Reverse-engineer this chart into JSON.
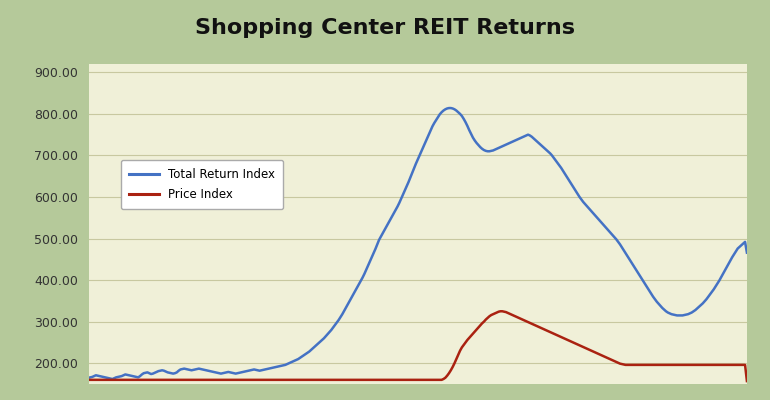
{
  "title": "Shopping Center REIT Returns",
  "title_fontsize": 16,
  "title_fontweight": "bold",
  "background_outer": "#b5c99a",
  "background_inner": "#f0f0d8",
  "ylim": [
    150,
    920
  ],
  "yticks": [
    200,
    300,
    400,
    500,
    600,
    700,
    800,
    900
  ],
  "grid_color": "#c8c8a0",
  "total_return_color": "#4472c4",
  "price_index_color": "#aa2211",
  "line_width": 1.8,
  "legend_label_total": "Total Return Index",
  "legend_label_price": "Price Index",
  "total_return_index": [
    165,
    166,
    167,
    169,
    171,
    170,
    169,
    168,
    167,
    166,
    165,
    164,
    163,
    162,
    164,
    166,
    167,
    168,
    169,
    171,
    173,
    172,
    171,
    170,
    169,
    168,
    167,
    166,
    169,
    173,
    176,
    177,
    178,
    176,
    174,
    175,
    177,
    179,
    181,
    182,
    183,
    182,
    180,
    178,
    177,
    176,
    175,
    176,
    178,
    182,
    185,
    186,
    187,
    186,
    185,
    184,
    183,
    184,
    185,
    186,
    187,
    186,
    185,
    184,
    183,
    182,
    181,
    180,
    179,
    178,
    177,
    176,
    175,
    176,
    177,
    178,
    179,
    178,
    177,
    176,
    175,
    176,
    177,
    178,
    179,
    180,
    181,
    182,
    183,
    184,
    185,
    184,
    183,
    182,
    183,
    184,
    185,
    186,
    187,
    188,
    189,
    190,
    191,
    192,
    193,
    194,
    195,
    196,
    198,
    200,
    202,
    204,
    206,
    208,
    210,
    213,
    216,
    219,
    222,
    225,
    228,
    232,
    236,
    240,
    244,
    248,
    252,
    256,
    260,
    265,
    270,
    275,
    280,
    286,
    292,
    298,
    304,
    311,
    318,
    326,
    334,
    342,
    350,
    358,
    366,
    374,
    382,
    390,
    398,
    406,
    415,
    425,
    435,
    445,
    455,
    465,
    475,
    486,
    497,
    505,
    513,
    521,
    529,
    537,
    545,
    553,
    561,
    569,
    577,
    586,
    596,
    606,
    616,
    626,
    636,
    647,
    658,
    669,
    680,
    690,
    700,
    710,
    720,
    730,
    740,
    750,
    760,
    770,
    778,
    785,
    792,
    799,
    804,
    808,
    811,
    813,
    814,
    814,
    813,
    811,
    808,
    804,
    800,
    795,
    788,
    780,
    771,
    761,
    752,
    743,
    736,
    730,
    725,
    720,
    716,
    713,
    711,
    710,
    710,
    711,
    712,
    714,
    716,
    718,
    720,
    722,
    724,
    726,
    728,
    730,
    732,
    734,
    736,
    738,
    740,
    742,
    744,
    746,
    748,
    750,
    748,
    745,
    741,
    737,
    733,
    729,
    725,
    721,
    717,
    713,
    709,
    705,
    700,
    694,
    688,
    682,
    676,
    670,
    663,
    656,
    649,
    642,
    635,
    628,
    621,
    614,
    607,
    600,
    594,
    588,
    583,
    578,
    573,
    568,
    563,
    558,
    553,
    548,
    543,
    538,
    533,
    528,
    523,
    518,
    513,
    508,
    503,
    498,
    492,
    486,
    479,
    472,
    465,
    458,
    451,
    444,
    437,
    430,
    423,
    416,
    409,
    402,
    395,
    388,
    381,
    374,
    367,
    360,
    354,
    348,
    343,
    338,
    333,
    329,
    325,
    322,
    320,
    318,
    317,
    316,
    315,
    315,
    315,
    315,
    316,
    317,
    318,
    320,
    322,
    325,
    328,
    332,
    336,
    340,
    344,
    349,
    354,
    360,
    366,
    372,
    378,
    385,
    392,
    399,
    407,
    415,
    423,
    431,
    439,
    447,
    455,
    462,
    469,
    476,
    480,
    484,
    488,
    492,
    466
  ],
  "price_index": [
    160,
    160,
    160,
    160,
    160,
    160,
    160,
    160,
    160,
    160,
    160,
    160,
    160,
    160,
    160,
    160,
    160,
    160,
    160,
    160,
    160,
    160,
    160,
    160,
    160,
    160,
    160,
    160,
    160,
    160,
    160,
    160,
    160,
    160,
    160,
    160,
    160,
    160,
    160,
    160,
    160,
    160,
    160,
    160,
    160,
    160,
    160,
    160,
    160,
    160,
    160,
    160,
    160,
    160,
    160,
    160,
    160,
    160,
    160,
    160,
    160,
    160,
    160,
    160,
    160,
    160,
    160,
    160,
    160,
    160,
    160,
    160,
    160,
    160,
    160,
    160,
    160,
    160,
    160,
    160,
    160,
    160,
    160,
    160,
    160,
    160,
    160,
    160,
    160,
    160,
    160,
    160,
    160,
    160,
    160,
    160,
    160,
    160,
    160,
    160,
    160,
    160,
    160,
    160,
    160,
    160,
    160,
    160,
    160,
    160,
    160,
    160,
    160,
    160,
    160,
    160,
    160,
    160,
    160,
    160,
    160,
    160,
    160,
    160,
    160,
    160,
    160,
    160,
    160,
    160,
    160,
    160,
    160,
    160,
    160,
    160,
    160,
    160,
    160,
    160,
    160,
    160,
    160,
    160,
    160,
    160,
    160,
    160,
    160,
    160,
    160,
    160,
    160,
    160,
    160,
    160,
    160,
    160,
    160,
    160,
    160,
    160,
    160,
    160,
    160,
    160,
    160,
    160,
    160,
    160,
    160,
    160,
    160,
    160,
    160,
    160,
    160,
    160,
    160,
    160,
    160,
    160,
    160,
    160,
    160,
    160,
    160,
    160,
    160,
    160,
    160,
    160,
    160,
    162,
    165,
    170,
    176,
    183,
    191,
    200,
    210,
    220,
    230,
    238,
    244,
    250,
    256,
    261,
    266,
    271,
    276,
    281,
    286,
    291,
    296,
    300,
    305,
    309,
    313,
    316,
    318,
    320,
    322,
    324,
    325,
    325,
    324,
    323,
    321,
    319,
    317,
    315,
    313,
    311,
    309,
    307,
    305,
    303,
    301,
    299,
    297,
    295,
    293,
    291,
    289,
    287,
    285,
    283,
    281,
    279,
    277,
    275,
    273,
    271,
    269,
    267,
    265,
    263,
    261,
    259,
    257,
    255,
    253,
    251,
    249,
    247,
    245,
    243,
    241,
    239,
    237,
    235,
    233,
    231,
    229,
    227,
    225,
    223,
    221,
    219,
    217,
    215,
    213,
    211,
    209,
    207,
    205,
    203,
    201,
    199,
    198,
    197,
    196,
    196,
    196,
    196,
    196,
    196,
    196,
    196,
    196,
    196,
    196,
    196,
    196,
    196,
    196,
    196,
    196,
    196,
    196,
    196,
    196,
    196,
    196,
    196,
    196,
    196,
    196,
    196,
    196,
    196,
    196,
    196,
    196,
    196,
    196,
    196,
    196,
    196,
    196,
    196,
    196,
    196,
    196,
    196,
    196,
    196,
    196,
    196,
    196,
    196,
    196,
    196,
    196,
    196,
    196,
    196,
    196,
    196,
    196,
    196,
    196,
    196,
    196,
    196,
    196,
    196,
    157
  ]
}
